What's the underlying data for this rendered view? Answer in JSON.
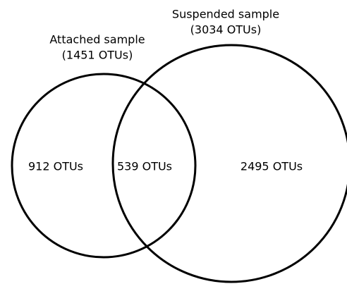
{
  "sets": [
    {
      "name": "Attached sample",
      "count": "(1451 OTUs)"
    },
    {
      "name": "Suspended sample",
      "count": "(3034 OTUs)"
    }
  ],
  "regions": {
    "attached_only": "912 OTUs",
    "overlap": "539 OTUs",
    "suspended_only": "2495 OTUs"
  }
}
